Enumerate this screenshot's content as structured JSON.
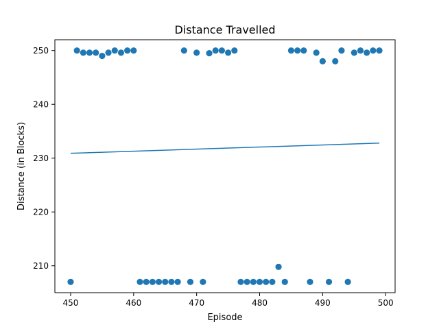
{
  "chart_data": {
    "type": "scatter",
    "title": "Distance Travelled",
    "xlabel": "Episode",
    "ylabel": "Distance (in Blocks)",
    "xlim": [
      447.5,
      501.5
    ],
    "ylim": [
      205,
      252
    ],
    "xticks": [
      450,
      460,
      470,
      480,
      490,
      500
    ],
    "yticks": [
      210,
      220,
      230,
      240,
      250
    ],
    "grid": false,
    "legend": "none",
    "series": [
      {
        "kind": "scatter",
        "color": "#1f77b4",
        "x": [
          450,
          451,
          452,
          453,
          454,
          455,
          456,
          457,
          458,
          459,
          460,
          461,
          462,
          463,
          464,
          465,
          466,
          467,
          468,
          469,
          470,
          471,
          472,
          473,
          474,
          475,
          476,
          477,
          478,
          479,
          480,
          481,
          482,
          483,
          484,
          485,
          486,
          487,
          488,
          489,
          490,
          491,
          492,
          493,
          494,
          495,
          496,
          497,
          498,
          499
        ],
        "y": [
          207,
          250,
          249.6,
          249.6,
          249.6,
          249,
          249.6,
          250,
          249.6,
          250,
          250,
          207,
          207,
          207,
          207,
          207,
          207,
          207,
          250,
          207,
          249.6,
          207,
          249.5,
          250,
          250,
          249.6,
          250,
          207,
          207,
          207,
          207,
          207,
          207,
          209.8,
          207,
          250,
          250,
          250,
          207,
          249.6,
          248,
          207,
          248,
          250,
          207,
          249.6,
          250,
          249.6,
          250,
          250
        ]
      },
      {
        "kind": "line",
        "color": "#1f77b4",
        "x": [
          450,
          499
        ],
        "y": [
          230.9,
          232.8
        ]
      }
    ]
  }
}
